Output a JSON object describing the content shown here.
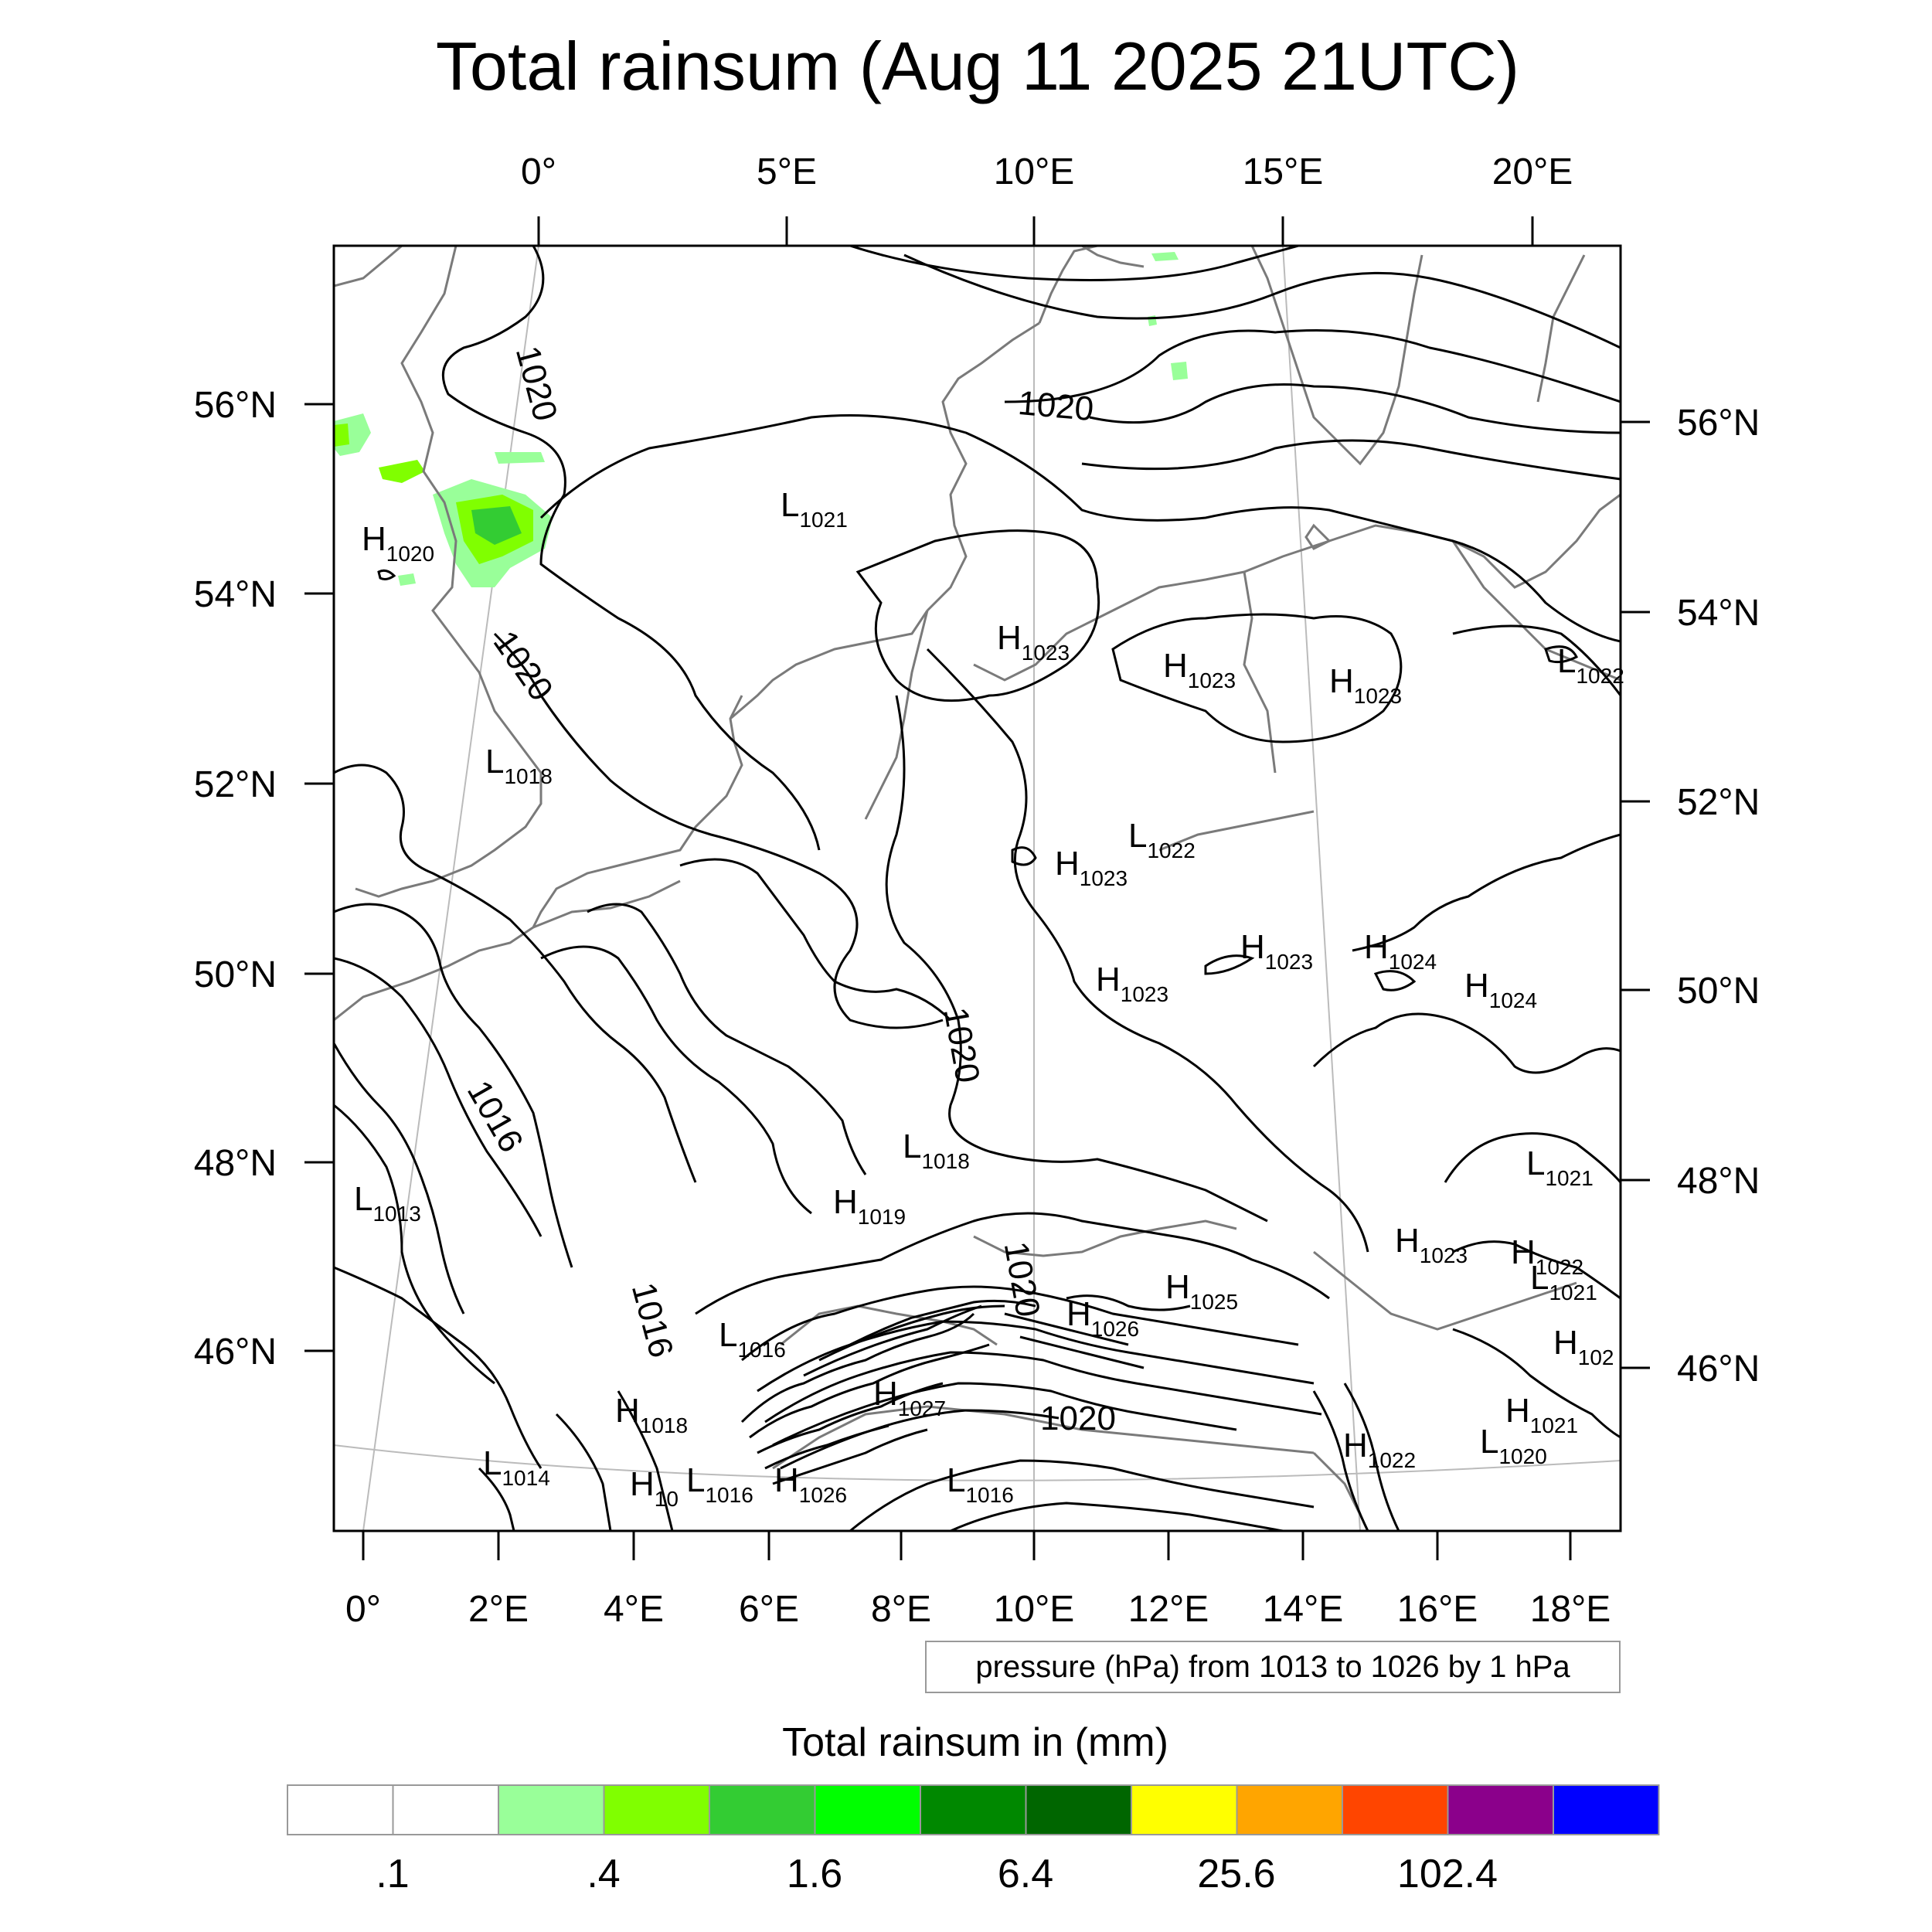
{
  "title": "Total rainsum (Aug 11 2025 21UTC)",
  "top_lon_labels": [
    "0°",
    "5°E",
    "10°E",
    "15°E",
    "20°E"
  ],
  "bottom_lon_labels": [
    "0°",
    "2°E",
    "4°E",
    "6°E",
    "8°E",
    "10°E",
    "12°E",
    "14°E",
    "16°E",
    "18°E"
  ],
  "left_lat_labels": [
    "56°N",
    "54°N",
    "52°N",
    "50°N",
    "48°N",
    "46°N"
  ],
  "right_lat_labels": [
    "56°N",
    "54°N",
    "52°N",
    "50°N",
    "48°N",
    "46°N"
  ],
  "contour_labels": [
    "1020",
    "1020",
    "1020",
    "1020",
    "1016",
    "1016",
    "1020",
    "1020"
  ],
  "pressure_centers": [
    {
      "type": "H",
      "value": "1020"
    },
    {
      "type": "L",
      "value": "1021"
    },
    {
      "type": "H",
      "value": "1023"
    },
    {
      "type": "H",
      "value": "1023"
    },
    {
      "type": "H",
      "value": "1023"
    },
    {
      "type": "L",
      "value": "1022"
    },
    {
      "type": "L",
      "value": "1018"
    },
    {
      "type": "H",
      "value": "1023"
    },
    {
      "type": "L",
      "value": "1022"
    },
    {
      "type": "H",
      "value": "1023"
    },
    {
      "type": "H",
      "value": "1023"
    },
    {
      "type": "H",
      "value": "1024"
    },
    {
      "type": "H",
      "value": "1024"
    },
    {
      "type": "L",
      "value": "1013"
    },
    {
      "type": "L",
      "value": "1018"
    },
    {
      "type": "H",
      "value": "1019"
    },
    {
      "type": "L",
      "value": "1021"
    },
    {
      "type": "H",
      "value": "1023"
    },
    {
      "type": "H",
      "value": "1022"
    },
    {
      "type": "L",
      "value": "1021"
    },
    {
      "type": "H",
      "value": "1025"
    },
    {
      "type": "H",
      "value": "1026"
    },
    {
      "type": "L",
      "value": "1016"
    },
    {
      "type": "H",
      "value": "102"
    },
    {
      "type": "H",
      "value": "1018"
    },
    {
      "type": "H",
      "value": "1027"
    },
    {
      "type": "H",
      "value": "1021"
    },
    {
      "type": "H",
      "value": "1022"
    },
    {
      "type": "L",
      "value": "1020"
    },
    {
      "type": "L",
      "value": "1014"
    },
    {
      "type": "H",
      "value": "10"
    },
    {
      "type": "L",
      "value": "1016"
    },
    {
      "type": "H",
      "value": "1026"
    },
    {
      "type": "L",
      "value": "1016"
    }
  ],
  "contour_info": "pressure (hPa) from 1013 to 1026 by 1 hPa",
  "legend": {
    "title": "Total rainsum in (mm)",
    "colors": [
      "#ffffff",
      "#ffffff",
      "#99ff99",
      "#80ff00",
      "#33cc33",
      "#00ff00",
      "#008800",
      "#006600",
      "#ffff00",
      "#ffa500",
      "#ff4500",
      "#8b008b",
      "#0000ff"
    ],
    "labels": [
      ".1",
      ".4",
      "1.6",
      "6.4",
      "25.6",
      "102.4"
    ]
  }
}
